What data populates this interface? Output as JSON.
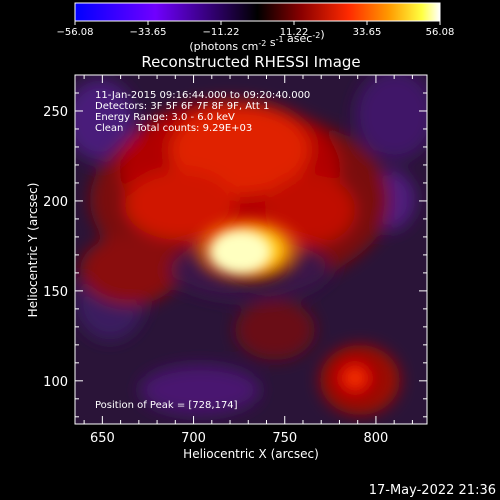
{
  "chart_data": {
    "type": "heatmap",
    "title": "Reconstructed RHESSI Image",
    "xlabel": "Heliocentric X (arcsec)",
    "ylabel": "Heliocentric Y (arcsec)",
    "xlim": [
      635,
      828
    ],
    "ylim": [
      76,
      270
    ],
    "x_ticks": [
      "650",
      "700",
      "750",
      "800"
    ],
    "y_ticks": [
      "100",
      "150",
      "200",
      "250"
    ],
    "colorbar": {
      "range": [
        -56.08,
        56.08
      ],
      "tick_labels": [
        "-56.08",
        "-33.65",
        "-11.22",
        "11.22",
        "33.65",
        "56.08"
      ],
      "unit_label": "(photons cm^-2 s^-1 asec^-2)",
      "colors": [
        "#0000ff",
        "#7000ff",
        "#000000",
        "#8a0000",
        "#ff2a00",
        "#ff9a00",
        "#ffff40",
        "#ffffff"
      ]
    },
    "peak": {
      "x": 728,
      "y": 174
    },
    "annotations": [
      "11-Jan-2015 09:16:44.000 to 09:20:40.000",
      "Detectors: 3F 5F 6F 7F 8F 9F, Att 1",
      "Energy Range: 3.0 - 6.0 keV",
      "Clean    Total counts: 9.29E+03",
      "Position of Peak = [728,174]"
    ],
    "grid": false
  },
  "footer": {
    "timestamp": "17-May-2022 21:36"
  }
}
